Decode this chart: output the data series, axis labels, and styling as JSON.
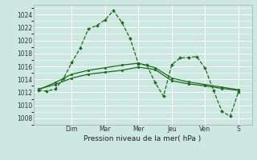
{
  "background_color": "#cce8e0",
  "grid_color": "#ffffff",
  "line_color": "#1a6b1a",
  "vline_color": "#8aaa8a",
  "title": "Pression niveau de la mer( hPa )",
  "ylim": [
    1007,
    1025.5
  ],
  "yticks": [
    1008,
    1010,
    1012,
    1014,
    1016,
    1018,
    1020,
    1022,
    1024
  ],
  "day_labels": [
    "Dim",
    "Mar",
    "Mer",
    "Jeu",
    "Ven",
    "S"
  ],
  "day_positions": [
    2,
    4,
    6,
    8,
    10,
    12
  ],
  "series1_x": [
    0,
    0.5,
    1.0,
    1.5,
    2.0,
    2.5,
    3.0,
    3.5,
    4.0,
    4.5,
    5.0,
    5.5,
    6.0,
    6.5,
    7.0,
    7.5,
    8.0,
    8.5,
    9.0,
    9.5,
    10.0,
    10.5,
    11.0,
    11.5,
    12.0
  ],
  "series1_y": [
    1012.3,
    1012.2,
    1012.5,
    1014.1,
    1016.6,
    1018.8,
    1021.8,
    1022.3,
    1023.2,
    1024.6,
    1022.8,
    1020.3,
    1016.4,
    1016.2,
    1013.5,
    1011.4,
    1016.3,
    1017.3,
    1017.4,
    1017.5,
    1015.7,
    1012.3,
    1009.1,
    1008.3,
    1012.1
  ],
  "series2_x": [
    0,
    1.0,
    2.0,
    3.0,
    4.0,
    5.0,
    6.0,
    7.0,
    8.0,
    9.0,
    10.0,
    11.0,
    12.0
  ],
  "series2_y": [
    1012.5,
    1013.2,
    1014.2,
    1014.8,
    1015.1,
    1015.4,
    1015.9,
    1015.5,
    1013.8,
    1013.3,
    1013.0,
    1012.6,
    1012.3
  ],
  "series3_x": [
    0,
    1.0,
    2.0,
    3.0,
    4.0,
    5.0,
    6.0,
    7.0,
    8.0,
    9.0,
    10.0,
    11.0,
    12.0
  ],
  "series3_y": [
    1012.4,
    1013.5,
    1014.8,
    1015.4,
    1015.8,
    1016.2,
    1016.5,
    1015.8,
    1014.2,
    1013.6,
    1013.2,
    1012.8,
    1012.4
  ],
  "xlim": [
    -0.3,
    12.8
  ],
  "figsize": [
    3.2,
    2.0
  ],
  "dpi": 100
}
